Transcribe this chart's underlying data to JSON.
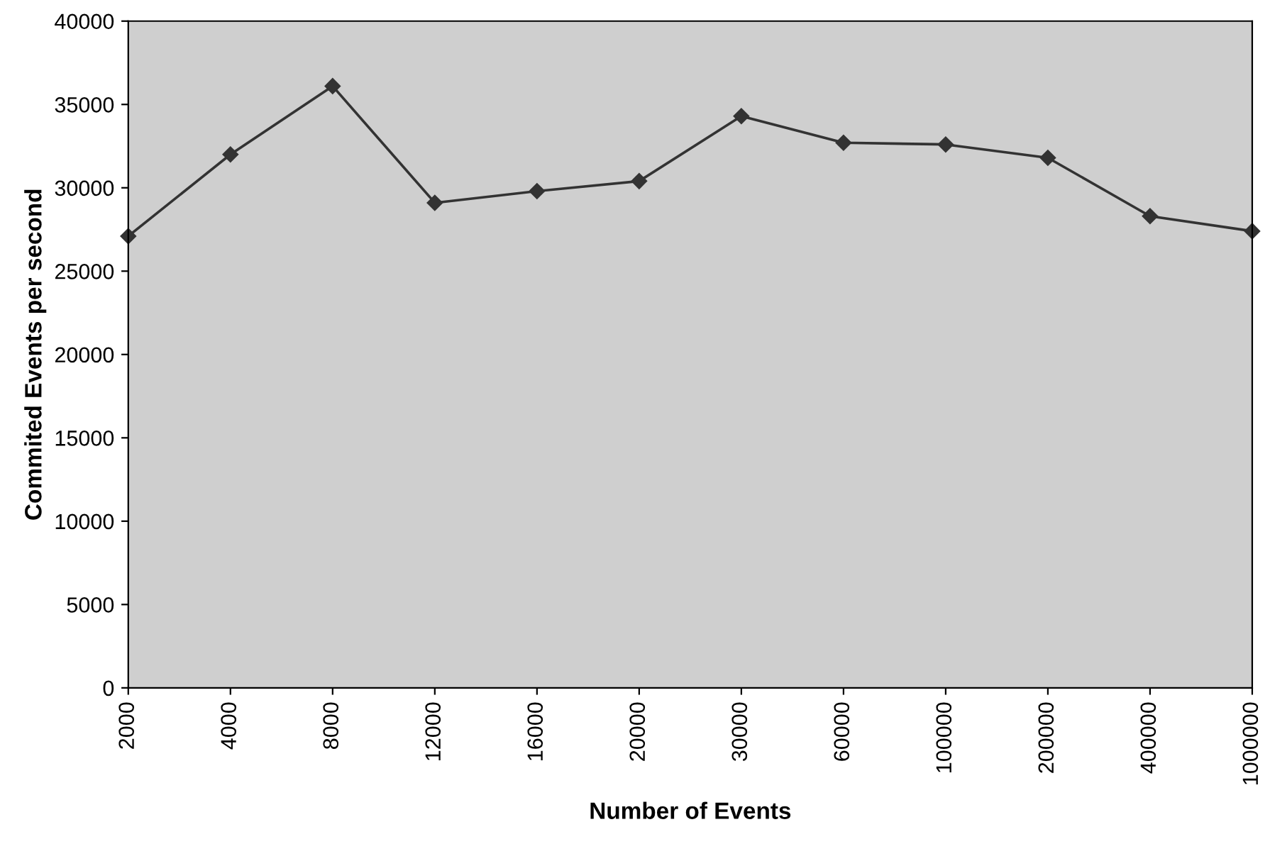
{
  "chart_data": {
    "type": "line",
    "xlabel": "Number of Events",
    "ylabel": "Commited Events per second",
    "categories": [
      "2000",
      "4000",
      "8000",
      "12000",
      "16000",
      "20000",
      "30000",
      "60000",
      "100000",
      "200000",
      "400000",
      "1000000"
    ],
    "series": [
      {
        "color": "#333333",
        "values": [
          27100,
          32000,
          36100,
          29100,
          29800,
          30400,
          34300,
          32700,
          32600,
          31800,
          28300,
          27400
        ]
      }
    ],
    "ylim": [
      0,
      40000
    ],
    "yticks": [
      0,
      5000,
      10000,
      15000,
      20000,
      25000,
      30000,
      35000,
      40000
    ],
    "grid": false,
    "legend": false,
    "marker": "diamond",
    "line_style": "solid"
  }
}
